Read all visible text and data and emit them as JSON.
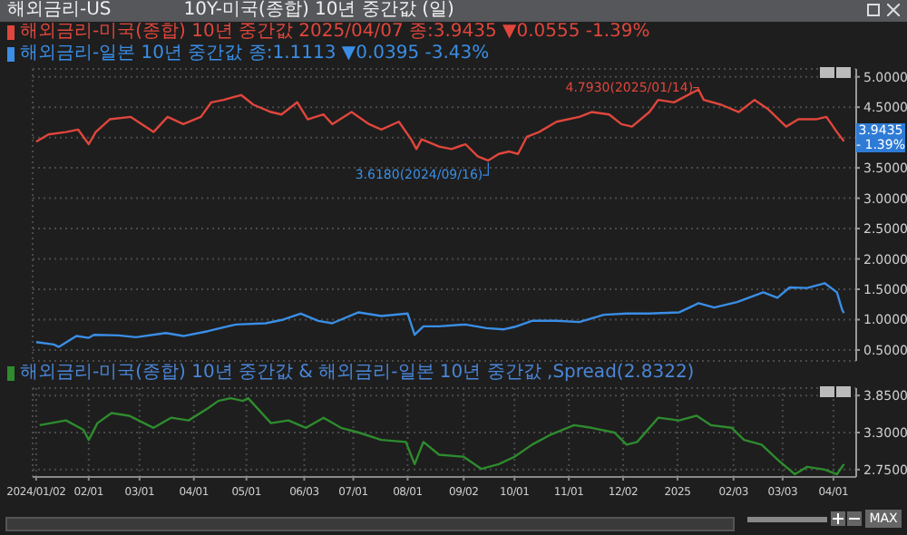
{
  "chart_data": [
    {
      "type": "line",
      "title": "해외금리-US",
      "subtitle": "10Y-미국(종합) 10년 중간값 (일)",
      "series": [
        {
          "name": "해외금리-미국(종합) 10년 중간값 2025/04/07 종:3.9435 ▼0.0555 -1.39%",
          "color": "#e0463c",
          "x": [
            "2024-01-02",
            "2024-01-09",
            "2024-01-19",
            "2024-01-26",
            "2024-02-01",
            "2024-02-05",
            "2024-02-13",
            "2024-02-25",
            "2024-03-09",
            "2024-03-17",
            "2024-03-26",
            "2024-04-05",
            "2024-04-11",
            "2024-04-18",
            "2024-04-28",
            "2024-05-05",
            "2024-05-15",
            "2024-05-21",
            "2024-05-30",
            "2024-06-05",
            "2024-06-14",
            "2024-06-19",
            "2024-06-30",
            "2024-07-10",
            "2024-07-17",
            "2024-07-27",
            "2024-08-03",
            "2024-08-06",
            "2024-08-09",
            "2024-08-19",
            "2024-08-26",
            "2024-09-03",
            "2024-09-10",
            "2024-09-16",
            "2024-09-22",
            "2024-09-28",
            "2024-10-03",
            "2024-10-08",
            "2024-10-15",
            "2024-10-25",
            "2024-11-07",
            "2024-11-14",
            "2024-11-24",
            "2024-12-01",
            "2024-12-07",
            "2024-12-17",
            "2024-12-22",
            "2024-12-31",
            "2025-01-14",
            "2025-01-17",
            "2025-01-27",
            "2025-02-06",
            "2025-02-15",
            "2025-02-23",
            "2025-03-05",
            "2025-03-12",
            "2025-03-22",
            "2025-03-28",
            "2025-04-03",
            "2025-04-07"
          ],
          "values": [
            3.93,
            4.05,
            4.09,
            4.13,
            3.89,
            4.09,
            4.3,
            4.34,
            4.09,
            4.34,
            4.22,
            4.34,
            4.58,
            4.62,
            4.7,
            4.54,
            4.42,
            4.38,
            4.58,
            4.3,
            4.38,
            4.22,
            4.42,
            4.22,
            4.13,
            4.26,
            3.97,
            3.81,
            3.97,
            3.85,
            3.81,
            3.89,
            3.69,
            3.62,
            3.73,
            3.77,
            3.73,
            4.01,
            4.09,
            4.26,
            4.34,
            4.42,
            4.38,
            4.22,
            4.18,
            4.42,
            4.62,
            4.58,
            4.79,
            4.62,
            4.54,
            4.42,
            4.62,
            4.46,
            4.18,
            4.3,
            4.3,
            4.34,
            4.09,
            3.94
          ]
        },
        {
          "name": "해외금리-일본 10년 중간값 종:1.1113 ▼0.0395 -3.43%",
          "color": "#3a8ee6",
          "x": [
            "2024-01-02",
            "2024-01-12",
            "2024-01-15",
            "2024-01-25",
            "2024-02-01",
            "2024-02-04",
            "2024-02-18",
            "2024-02-28",
            "2024-03-16",
            "2024-03-26",
            "2024-04-09",
            "2024-04-25",
            "2024-05-12",
            "2024-05-22",
            "2024-06-01",
            "2024-06-11",
            "2024-06-19",
            "2024-07-04",
            "2024-07-17",
            "2024-08-01",
            "2024-08-05",
            "2024-08-10",
            "2024-08-19",
            "2024-09-03",
            "2024-09-15",
            "2024-09-25",
            "2024-10-01",
            "2024-10-11",
            "2024-10-25",
            "2024-11-07",
            "2024-11-21",
            "2024-12-04",
            "2024-12-17",
            "2025-01-03",
            "2025-01-14",
            "2025-01-23",
            "2025-02-05",
            "2025-02-20",
            "2025-02-28",
            "2025-03-07",
            "2025-03-17",
            "2025-03-27",
            "2025-04-03",
            "2025-04-06",
            "2025-04-07"
          ],
          "values": [
            0.63,
            0.59,
            0.55,
            0.73,
            0.7,
            0.75,
            0.74,
            0.71,
            0.78,
            0.73,
            0.81,
            0.92,
            0.94,
            1.0,
            1.1,
            0.98,
            0.94,
            1.12,
            1.06,
            1.1,
            0.75,
            0.89,
            0.89,
            0.92,
            0.86,
            0.84,
            0.88,
            0.98,
            0.98,
            0.96,
            1.08,
            1.1,
            1.1,
            1.12,
            1.27,
            1.2,
            1.29,
            1.45,
            1.36,
            1.53,
            1.52,
            1.6,
            1.45,
            1.16,
            1.11
          ]
        }
      ],
      "xlim": [
        "2023-12-31",
        "2025-04-14"
      ],
      "xticks": [
        {
          "value": "2024-01-02",
          "label": null
        },
        {
          "value": "2024-02-01",
          "label": null
        },
        {
          "value": "2024-03-01",
          "label": null
        },
        {
          "value": "2024-04-01",
          "label": null
        },
        {
          "value": "2024-05-01",
          "label": null
        },
        {
          "value": "2024-06-03",
          "label": null
        },
        {
          "value": "2024-07-01",
          "label": null
        },
        {
          "value": "2024-08-01",
          "label": null
        },
        {
          "value": "2024-09-02",
          "label": null
        },
        {
          "value": "2024-10-01",
          "label": null
        },
        {
          "value": "2024-11-01",
          "label": null
        },
        {
          "value": "2024-12-02",
          "label": null
        },
        {
          "value": "2025-01-02",
          "label": null
        },
        {
          "value": "2025-02-03",
          "label": null
        },
        {
          "value": "2025-03-03",
          "label": null
        },
        {
          "value": "2025-04-01",
          "label": null
        }
      ],
      "ylim": [
        0.32,
        5.13
      ],
      "yticks": [
        {
          "value": 0.5,
          "label": "0.5000"
        },
        {
          "value": 1.0,
          "label": "1.0000"
        },
        {
          "value": 1.5,
          "label": "1.5000"
        },
        {
          "value": 2.0,
          "label": "2.0000"
        },
        {
          "value": 2.5,
          "label": "2.5000"
        },
        {
          "value": 3.0,
          "label": "3.0000"
        },
        {
          "value": 3.5,
          "label": "3.5000"
        },
        {
          "value": 4.0,
          "label": null
        },
        {
          "value": 4.5,
          "label": "4.5000"
        },
        {
          "value": 5.0,
          "label": "5.0000"
        }
      ],
      "tick_labels": "y",
      "grid": true,
      "legend": "top left",
      "annotations": [
        {
          "text": "4.7930(2025/01/14)",
          "x": "2025-01-14",
          "y": 4.793
        },
        {
          "text": "3.6180(2024/09/16)",
          "x": "2024-09-16",
          "y": 3.618
        },
        "3.9435",
        "- 1.39%"
      ]
    },
    {
      "type": "line",
      "series": [
        {
          "name": "해외금리-미국(종합) 10년 중간값 & 해외금리-일본 10년 중간값 ,Spread(2.8322)",
          "color": "#2e8b2e",
          "x": [
            "2024-01-04",
            "2024-01-19",
            "2024-01-29",
            "2024-02-01",
            "2024-02-06",
            "2024-02-14",
            "2024-02-24",
            "2024-03-09",
            "2024-03-19",
            "2024-03-29",
            "2024-04-09",
            "2024-04-15",
            "2024-04-22",
            "2024-04-29",
            "2024-05-02",
            "2024-05-15",
            "2024-05-25",
            "2024-06-04",
            "2024-06-14",
            "2024-06-24",
            "2024-07-04",
            "2024-07-17",
            "2024-07-31",
            "2024-08-05",
            "2024-08-10",
            "2024-08-19",
            "2024-09-02",
            "2024-09-12",
            "2024-09-22",
            "2024-10-01",
            "2024-10-11",
            "2024-10-21",
            "2024-11-04",
            "2024-11-14",
            "2024-11-27",
            "2024-12-04",
            "2024-12-10",
            "2024-12-22",
            "2025-01-03",
            "2025-01-13",
            "2025-01-21",
            "2025-02-02",
            "2025-02-09",
            "2025-02-19",
            "2025-02-28",
            "2025-03-10",
            "2025-03-17",
            "2025-03-27",
            "2025-04-03",
            "2025-04-07"
          ],
          "values": [
            3.41,
            3.48,
            3.34,
            3.19,
            3.44,
            3.59,
            3.55,
            3.37,
            3.52,
            3.48,
            3.66,
            3.77,
            3.81,
            3.77,
            3.81,
            3.44,
            3.48,
            3.37,
            3.52,
            3.37,
            3.3,
            3.19,
            3.16,
            2.83,
            3.16,
            2.97,
            2.94,
            2.76,
            2.83,
            2.94,
            3.12,
            3.26,
            3.41,
            3.37,
            3.3,
            3.12,
            3.16,
            3.52,
            3.48,
            3.55,
            3.41,
            3.37,
            3.19,
            3.12,
            2.9,
            2.68,
            2.79,
            2.75,
            2.68,
            2.83
          ]
        }
      ],
      "xlim": [
        "2023-12-31",
        "2025-04-14"
      ],
      "xticks": [
        {
          "value": "2024-01-02",
          "label": "2024/01/02"
        },
        {
          "value": "2024-02-01",
          "label": "02/01"
        },
        {
          "value": "2024-03-01",
          "label": "03/01"
        },
        {
          "value": "2024-04-01",
          "label": "04/01"
        },
        {
          "value": "2024-05-01",
          "label": "05/01"
        },
        {
          "value": "2024-06-03",
          "label": "06/03"
        },
        {
          "value": "2024-07-01",
          "label": "07/01"
        },
        {
          "value": "2024-08-01",
          "label": "08/01"
        },
        {
          "value": "2024-09-02",
          "label": "09/02"
        },
        {
          "value": "2024-10-01",
          "label": "10/01"
        },
        {
          "value": "2024-11-01",
          "label": "11/01"
        },
        {
          "value": "2024-12-02",
          "label": "12/02"
        },
        {
          "value": "2025-01-02",
          "label": "2025"
        },
        {
          "value": "2025-02-03",
          "label": "02/03"
        },
        {
          "value": "2025-03-03",
          "label": "03/03"
        },
        {
          "value": "2025-04-01",
          "label": "04/01"
        }
      ],
      "ylim": [
        2.64,
        3.96
      ],
      "yticks": [
        {
          "value": 2.75,
          "label": "2.7500"
        },
        {
          "value": 3.3,
          "label": "3.3000"
        },
        {
          "value": 3.85,
          "label": "3.8500"
        }
      ],
      "grid": true,
      "legend": "top left",
      "annotations": [
        "MAX"
      ]
    }
  ]
}
